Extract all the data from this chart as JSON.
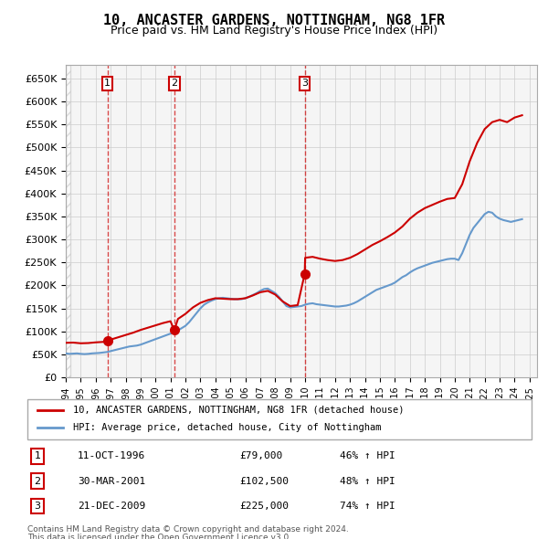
{
  "title": "10, ANCASTER GARDENS, NOTTINGHAM, NG8 1FR",
  "subtitle": "Price paid vs. HM Land Registry's House Price Index (HPI)",
  "ylabel_ticks": [
    "£0",
    "£50K",
    "£100K",
    "£150K",
    "£200K",
    "£250K",
    "£300K",
    "£350K",
    "£400K",
    "£450K",
    "£500K",
    "£550K",
    "£600K",
    "£650K"
  ],
  "ytick_values": [
    0,
    50000,
    100000,
    150000,
    200000,
    250000,
    300000,
    350000,
    400000,
    450000,
    500000,
    550000,
    600000,
    650000
  ],
  "xmin": 1994.0,
  "xmax": 2025.5,
  "ymin": 0,
  "ymax": 680000,
  "sale_color": "#cc0000",
  "hpi_color": "#6699cc",
  "sale_label": "10, ANCASTER GARDENS, NOTTINGHAM, NG8 1FR (detached house)",
  "hpi_label": "HPI: Average price, detached house, City of Nottingham",
  "transactions": [
    {
      "num": 1,
      "date": "11-OCT-1996",
      "price": 79000,
      "pct": "46%",
      "x": 1996.78
    },
    {
      "num": 2,
      "date": "30-MAR-2001",
      "price": 102500,
      "pct": "48%",
      "x": 2001.25
    },
    {
      "num": 3,
      "date": "21-DEC-2009",
      "price": 225000,
      "pct": "74%",
      "x": 2009.97
    }
  ],
  "footnote1": "Contains HM Land Registry data © Crown copyright and database right 2024.",
  "footnote2": "This data is licensed under the Open Government Licence v3.0.",
  "hpi_data_x": [
    1994.0,
    1994.25,
    1994.5,
    1994.75,
    1995.0,
    1995.25,
    1995.5,
    1995.75,
    1996.0,
    1996.25,
    1996.5,
    1996.75,
    1997.0,
    1997.25,
    1997.5,
    1997.75,
    1998.0,
    1998.25,
    1998.5,
    1998.75,
    1999.0,
    1999.25,
    1999.5,
    1999.75,
    2000.0,
    2000.25,
    2000.5,
    2000.75,
    2001.0,
    2001.25,
    2001.5,
    2001.75,
    2002.0,
    2002.25,
    2002.5,
    2002.75,
    2003.0,
    2003.25,
    2003.5,
    2003.75,
    2004.0,
    2004.25,
    2004.5,
    2004.75,
    2005.0,
    2005.25,
    2005.5,
    2005.75,
    2006.0,
    2006.25,
    2006.5,
    2006.75,
    2007.0,
    2007.25,
    2007.5,
    2007.75,
    2008.0,
    2008.25,
    2008.5,
    2008.75,
    2009.0,
    2009.25,
    2009.5,
    2009.75,
    2010.0,
    2010.25,
    2010.5,
    2010.75,
    2011.0,
    2011.25,
    2011.5,
    2011.75,
    2012.0,
    2012.25,
    2012.5,
    2012.75,
    2013.0,
    2013.25,
    2013.5,
    2013.75,
    2014.0,
    2014.25,
    2014.5,
    2014.75,
    2015.0,
    2015.25,
    2015.5,
    2015.75,
    2016.0,
    2016.25,
    2016.5,
    2016.75,
    2017.0,
    2017.25,
    2017.5,
    2017.75,
    2018.0,
    2018.25,
    2018.5,
    2018.75,
    2019.0,
    2019.25,
    2019.5,
    2019.75,
    2020.0,
    2020.25,
    2020.5,
    2020.75,
    2021.0,
    2021.25,
    2021.5,
    2021.75,
    2022.0,
    2022.25,
    2022.5,
    2022.75,
    2023.0,
    2023.25,
    2023.5,
    2023.75,
    2024.0,
    2024.25,
    2024.5
  ],
  "hpi_data_y": [
    52000,
    51000,
    51500,
    52000,
    51000,
    50500,
    51000,
    52000,
    52500,
    53000,
    54000,
    55000,
    57000,
    59000,
    61000,
    63000,
    65000,
    67000,
    68000,
    69000,
    71000,
    74000,
    77000,
    80000,
    83000,
    86000,
    89000,
    92000,
    95000,
    98000,
    102000,
    107000,
    112000,
    120000,
    130000,
    140000,
    150000,
    158000,
    163000,
    167000,
    170000,
    172000,
    173000,
    172000,
    171000,
    170000,
    170000,
    170000,
    172000,
    175000,
    179000,
    183000,
    188000,
    192000,
    193000,
    188000,
    183000,
    175000,
    165000,
    155000,
    152000,
    153000,
    154000,
    155000,
    158000,
    160000,
    161000,
    159000,
    158000,
    157000,
    156000,
    155000,
    154000,
    154000,
    155000,
    156000,
    158000,
    161000,
    165000,
    170000,
    175000,
    180000,
    185000,
    190000,
    193000,
    196000,
    199000,
    202000,
    206000,
    212000,
    218000,
    222000,
    228000,
    233000,
    237000,
    240000,
    243000,
    246000,
    249000,
    251000,
    253000,
    255000,
    257000,
    258000,
    258000,
    255000,
    270000,
    290000,
    310000,
    325000,
    335000,
    345000,
    355000,
    360000,
    358000,
    350000,
    345000,
    342000,
    340000,
    338000,
    340000,
    342000,
    344000
  ],
  "sale_data_x": [
    1994.0,
    1994.5,
    1995.0,
    1995.5,
    1996.0,
    1996.5,
    1996.78,
    1997.0,
    1997.5,
    1998.0,
    1998.5,
    1999.0,
    1999.5,
    2000.0,
    2000.5,
    2001.0,
    2001.25,
    2001.5,
    2002.0,
    2002.5,
    2003.0,
    2003.5,
    2004.0,
    2004.5,
    2005.0,
    2005.5,
    2006.0,
    2006.5,
    2007.0,
    2007.5,
    2008.0,
    2008.5,
    2009.0,
    2009.5,
    2009.97,
    2010.0,
    2010.5,
    2011.0,
    2011.5,
    2012.0,
    2012.5,
    2013.0,
    2013.5,
    2014.0,
    2014.5,
    2015.0,
    2015.5,
    2016.0,
    2016.5,
    2017.0,
    2017.5,
    2018.0,
    2018.5,
    2019.0,
    2019.5,
    2020.0,
    2020.5,
    2021.0,
    2021.5,
    2022.0,
    2022.5,
    2023.0,
    2023.5,
    2024.0,
    2024.5
  ],
  "sale_data_y": [
    75000,
    75500,
    74000,
    74500,
    76000,
    77000,
    79000,
    82000,
    87000,
    92000,
    97000,
    103000,
    108000,
    113000,
    118000,
    122000,
    102500,
    127000,
    138000,
    152000,
    162000,
    168000,
    172000,
    171000,
    170000,
    170000,
    172000,
    178000,
    185000,
    188000,
    180000,
    165000,
    155000,
    157000,
    225000,
    260000,
    262000,
    258000,
    255000,
    253000,
    255000,
    260000,
    268000,
    278000,
    288000,
    296000,
    305000,
    315000,
    328000,
    345000,
    358000,
    368000,
    375000,
    382000,
    388000,
    390000,
    420000,
    470000,
    510000,
    540000,
    555000,
    560000,
    555000,
    565000,
    570000
  ],
  "background_hatch_color": "#e8e8e8",
  "grid_color": "#cccccc",
  "box_color": "#cc0000"
}
